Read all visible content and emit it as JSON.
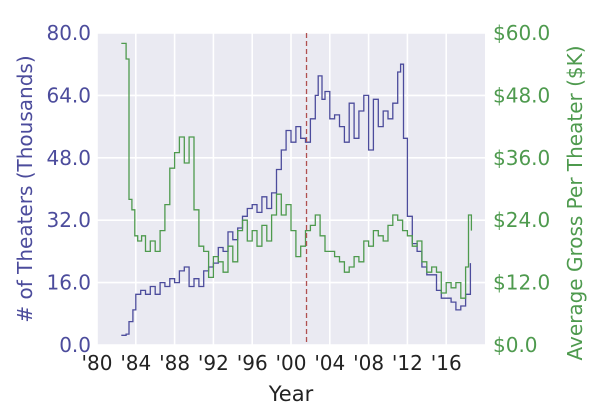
{
  "chart_data": {
    "type": "line",
    "xlabel": "Year",
    "ylabel_left": "# of Theaters (Thousands)",
    "ylabel_right": "Average Gross Per Theater ($K)",
    "xlim": [
      1980,
      2020
    ],
    "ylim_left": [
      0,
      80
    ],
    "ylim_right": [
      0,
      60
    ],
    "x_ticks": [
      {
        "value": 1980,
        "label": "'80"
      },
      {
        "value": 1984,
        "label": "'84"
      },
      {
        "value": 1988,
        "label": "'88"
      },
      {
        "value": 1992,
        "label": "'92"
      },
      {
        "value": 1996,
        "label": "'96"
      },
      {
        "value": 2000,
        "label": "'00"
      },
      {
        "value": 2004,
        "label": "'04"
      },
      {
        "value": 2008,
        "label": "'08"
      },
      {
        "value": 2012,
        "label": "'12"
      },
      {
        "value": 2016,
        "label": "'16"
      }
    ],
    "y_left_ticks": [
      {
        "value": 0,
        "label": "0.0"
      },
      {
        "value": 16,
        "label": "16.0"
      },
      {
        "value": 32,
        "label": "32.0"
      },
      {
        "value": 48,
        "label": "48.0"
      },
      {
        "value": 64,
        "label": "64.0"
      },
      {
        "value": 80,
        "label": "80.0"
      }
    ],
    "y_right_ticks": [
      {
        "value": 0,
        "label": "$0.0"
      },
      {
        "value": 12,
        "label": "$12.0"
      },
      {
        "value": 24,
        "label": "$24.0"
      },
      {
        "value": 36,
        "label": "$36.0"
      },
      {
        "value": 48,
        "label": "$48.0"
      },
      {
        "value": 60,
        "label": "$60.0"
      }
    ],
    "vline": {
      "x": 2001.6,
      "color": "#b05050",
      "style": "dashed"
    },
    "grid": true,
    "colors": {
      "theaters": "#4c4c9c",
      "gross": "#4e9a4e",
      "background": "#eaeaf2"
    },
    "series": [
      {
        "name": "# of Theaters (Thousands)",
        "axis": "left",
        "x": [
          1982.5,
          1983,
          1983.3,
          1983.7,
          1984,
          1984.5,
          1985,
          1985.5,
          1986,
          1986.5,
          1987,
          1987.5,
          1988,
          1988.5,
          1989,
          1989.5,
          1990,
          1990.5,
          1991,
          1991.5,
          1992,
          1992.5,
          1993,
          1993.5,
          1994,
          1994.5,
          1995,
          1995.5,
          1996,
          1996.5,
          1997,
          1997.5,
          1998,
          1998.5,
          1999,
          1999.5,
          2000,
          2000.5,
          2001,
          2001.5,
          2002,
          2002.5,
          2002.8,
          2003.2,
          2003.5,
          2004,
          2004.5,
          2005,
          2005.5,
          2006,
          2006.5,
          2007,
          2007.5,
          2008,
          2008.5,
          2009,
          2009.5,
          2010,
          2010.5,
          2011,
          2011.3,
          2011.6,
          2012,
          2012.5,
          2013,
          2013.5,
          2014,
          2014.5,
          2015,
          2015.5,
          2016,
          2016.5,
          2017,
          2017.5,
          2018,
          2018.5
        ],
        "values": [
          2.5,
          2.8,
          6,
          9,
          13,
          14,
          13,
          15,
          13,
          16,
          15,
          17,
          16,
          19,
          20,
          15,
          17,
          15,
          19,
          20,
          21,
          25,
          24,
          29,
          27,
          30,
          33,
          35,
          36,
          34,
          38,
          35,
          39,
          45,
          50,
          55,
          52,
          56,
          53,
          52,
          58,
          64,
          69,
          63,
          65,
          58,
          59,
          56,
          52,
          62,
          53,
          60,
          64,
          50,
          63,
          56,
          60,
          58,
          62,
          70,
          72,
          53,
          33,
          26,
          24,
          20,
          18,
          18,
          14,
          12,
          12,
          11,
          9,
          10,
          13,
          21
        ]
      },
      {
        "name": "Average Gross Per Theater ($K)",
        "axis": "right",
        "x": [
          1982.5,
          1982.9,
          1983,
          1983.3,
          1983.6,
          1983.9,
          1984.2,
          1984.6,
          1985,
          1985.5,
          1986,
          1986.5,
          1987,
          1987.5,
          1988,
          1988.5,
          1989,
          1989.5,
          1990,
          1990.5,
          1991,
          1991.5,
          1992,
          1992.5,
          1993,
          1993.5,
          1994,
          1994.5,
          1995,
          1995.5,
          1996,
          1996.5,
          1997,
          1997.5,
          1998,
          1998.5,
          1999,
          1999.5,
          2000,
          2000.5,
          2001,
          2001.5,
          2002,
          2002.5,
          2003,
          2003.5,
          2004,
          2004.5,
          2005,
          2005.5,
          2006,
          2006.5,
          2007,
          2007.5,
          2008,
          2008.5,
          2009,
          2009.5,
          2010,
          2010.5,
          2011,
          2011.5,
          2012,
          2012.5,
          2013,
          2013.5,
          2014,
          2014.5,
          2015,
          2015.5,
          2016,
          2016.5,
          2017,
          2017.5,
          2018,
          2018.3,
          2018.6
        ],
        "values": [
          58,
          58,
          55,
          28,
          26,
          21,
          20,
          21,
          18,
          20,
          18,
          22,
          27,
          34,
          37,
          40,
          35,
          40,
          26,
          19,
          18,
          13,
          17,
          16,
          14,
          19,
          16,
          22,
          24,
          20,
          22,
          19,
          23,
          20,
          25,
          29,
          25,
          27,
          22,
          17,
          19,
          22,
          23,
          25,
          21,
          18,
          18,
          17,
          16,
          14,
          15,
          17,
          16,
          20,
          19,
          22,
          21,
          20,
          23,
          25,
          24,
          22,
          21,
          19,
          20,
          16,
          14,
          15,
          14,
          10,
          12,
          11,
          12,
          9,
          15,
          25,
          22
        ]
      }
    ]
  }
}
